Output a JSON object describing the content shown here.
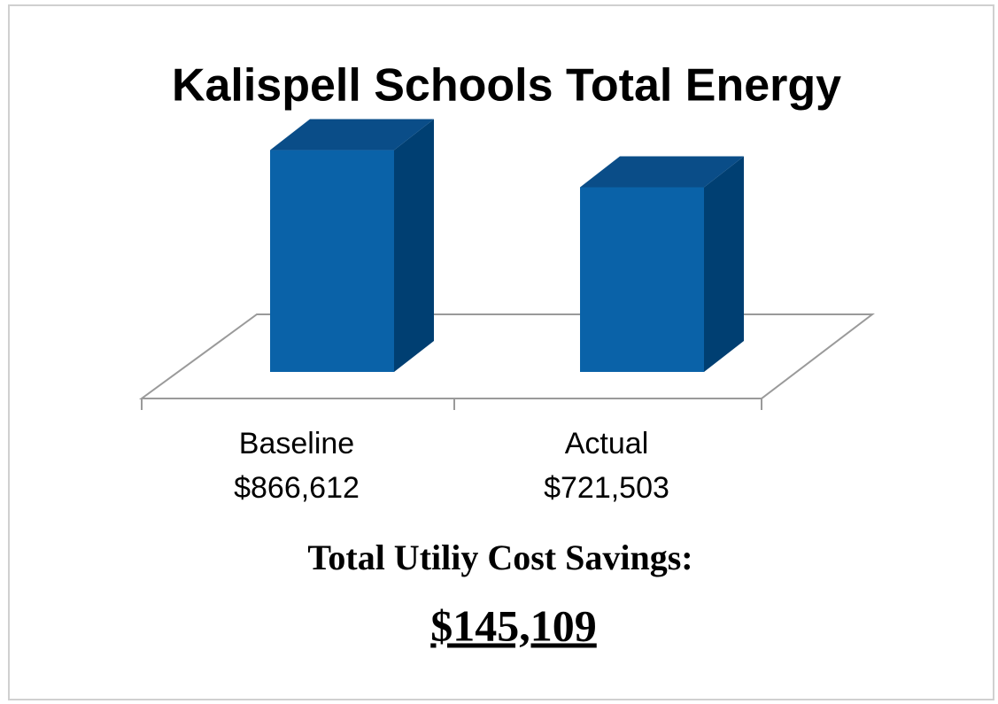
{
  "chart_data": {
    "type": "bar3d",
    "title": "Kalispell Schools Total Energy",
    "categories": [
      "Baseline",
      "Actual"
    ],
    "values": [
      866612,
      721503
    ],
    "value_labels": [
      "$866,612",
      "$721,503"
    ],
    "color": "#0a62a8",
    "ylim": [
      0,
      1000000
    ],
    "savings_label": "Total Utiliy Cost Savings:",
    "savings_value": "$145,109"
  }
}
